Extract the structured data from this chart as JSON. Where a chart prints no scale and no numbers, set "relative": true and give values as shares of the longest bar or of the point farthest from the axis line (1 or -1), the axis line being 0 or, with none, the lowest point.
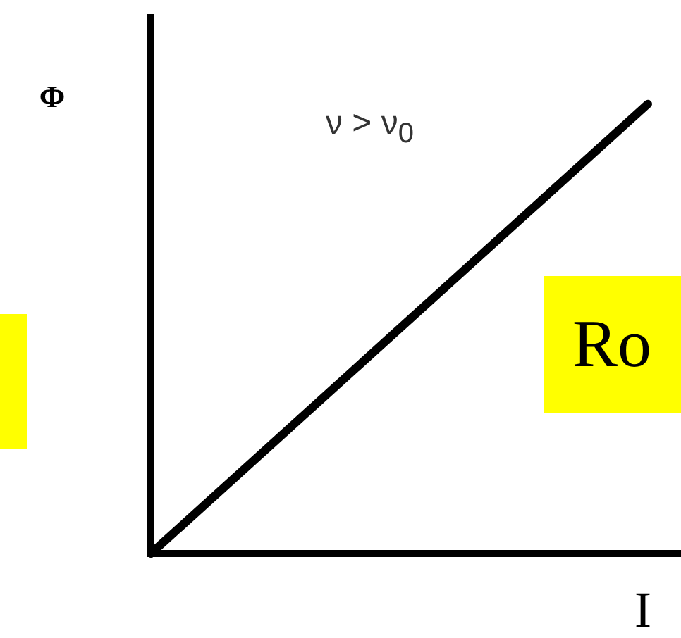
{
  "chart_data": {
    "type": "line",
    "relative": true,
    "xlabel": "I",
    "ylabel": "Φ",
    "annotations": [
      "ν > ν$_{0}$",
      "Ro"
    ],
    "categories": [
      null,
      null,
      null,
      null,
      null,
      null,
      null,
      null,
      null,
      null,
      null,
      null,
      null,
      null,
      null,
      null,
      null
    ],
    "series": [
      {
        "color": "#000000",
        "values": [
          0,
          null,
          null,
          null,
          null,
          null,
          null,
          null,
          null,
          null,
          null,
          null,
          null,
          null,
          null,
          1,
          null
        ]
      }
    ],
    "marker": "none",
    "line_style": "solid",
    "legend": false
  }
}
